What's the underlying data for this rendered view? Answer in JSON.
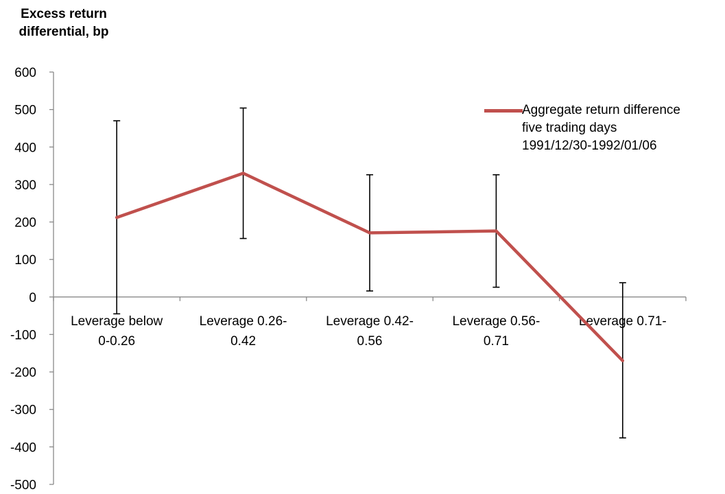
{
  "chart_data": {
    "type": "line",
    "ylabel_lines": [
      "Excess return",
      "differential, bp"
    ],
    "categories": [
      [
        "Leverage below",
        "0-0.26"
      ],
      [
        "Leverage 0.26-",
        "0.42"
      ],
      [
        "Leverage 0.42-",
        "0.56"
      ],
      [
        "Leverage 0.56-",
        "0.71"
      ],
      [
        "Leverage 0.71-"
      ]
    ],
    "series": [
      {
        "name_lines": [
          "Aggregate return difference",
          "five trading days",
          "1991/12/30-1992/01/06"
        ],
        "color": "#c0504d",
        "values": [
          212,
          330,
          171,
          176,
          -170
        ],
        "error_upper": [
          470,
          504,
          326,
          326,
          38
        ],
        "error_lower": [
          -45,
          156,
          16,
          26,
          -376
        ]
      }
    ],
    "ylim": [
      -500,
      600
    ],
    "yticks": [
      600,
      500,
      400,
      300,
      200,
      100,
      0,
      -100,
      -200,
      -300,
      -400,
      -500
    ],
    "grid": false,
    "legend_position": "top-right"
  }
}
